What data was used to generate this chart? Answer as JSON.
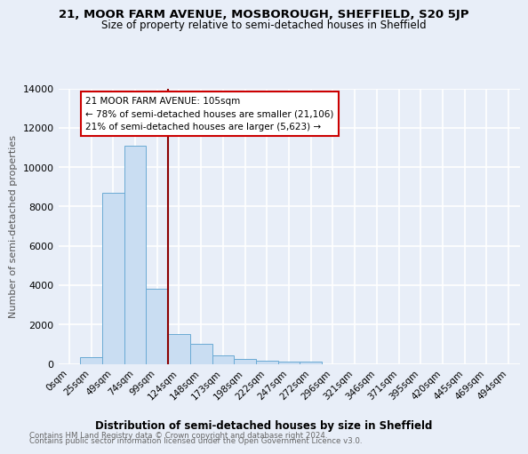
{
  "title1": "21, MOOR FARM AVENUE, MOSBOROUGH, SHEFFIELD, S20 5JP",
  "title2": "Size of property relative to semi-detached houses in Sheffield",
  "xlabel": "Distribution of semi-detached houses by size in Sheffield",
  "ylabel": "Number of semi-detached properties",
  "bar_color": "#c9ddf2",
  "bar_edge_color": "#6aaad4",
  "annotation_property": "21 MOOR FARM AVENUE: 105sqm",
  "annotation_line1": "← 78% of semi-detached houses are smaller (21,106)",
  "annotation_line2": "21% of semi-detached houses are larger (5,623) →",
  "vline_color": "#8b0000",
  "box_edge_color": "#cc0000",
  "categories": [
    "0sqm",
    "25sqm",
    "49sqm",
    "74sqm",
    "99sqm",
    "124sqm",
    "148sqm",
    "173sqm",
    "198sqm",
    "222sqm",
    "247sqm",
    "272sqm",
    "296sqm",
    "321sqm",
    "346sqm",
    "371sqm",
    "395sqm",
    "420sqm",
    "445sqm",
    "469sqm",
    "494sqm"
  ],
  "values": [
    0,
    330,
    8700,
    11100,
    3800,
    1500,
    1000,
    420,
    230,
    150,
    100,
    100,
    0,
    0,
    0,
    0,
    0,
    0,
    0,
    0,
    0
  ],
  "ylim": [
    0,
    14000
  ],
  "yticks": [
    0,
    2000,
    4000,
    6000,
    8000,
    10000,
    12000,
    14000
  ],
  "footer1": "Contains HM Land Registry data © Crown copyright and database right 2024.",
  "footer2": "Contains public sector information licensed under the Open Government Licence v3.0.",
  "bg_color": "#e8eef8",
  "plot_bg_color": "#e8eef8",
  "grid_color": "white",
  "annotation_box_color": "white",
  "vline_x": 4.5
}
